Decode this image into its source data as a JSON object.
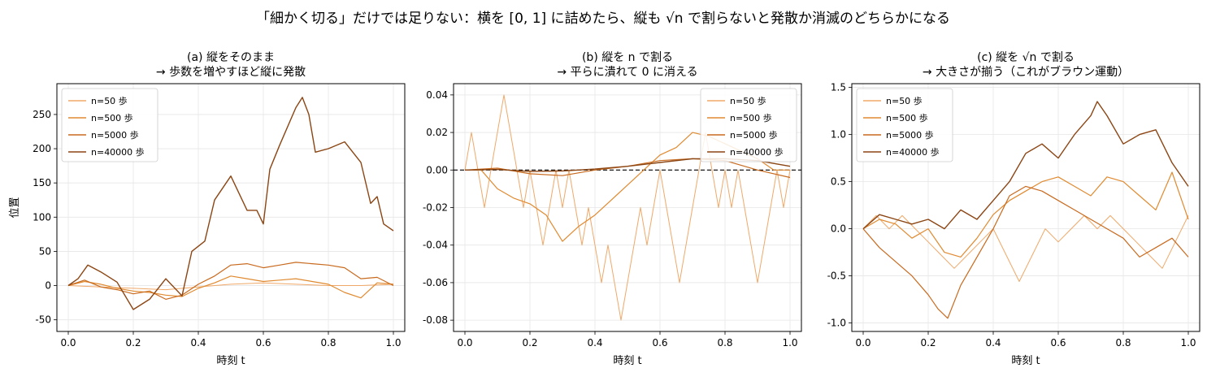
{
  "suptitle": "「細かく切る」だけでは足りない：横を [0, 1] に詰めたら、縦も √n で割らないと発散か消滅のどちらかになる",
  "colors": {
    "n50": "#f0a868",
    "n500": "#e08a30",
    "n5000": "#c86a1e",
    "n40000": "#8b4513",
    "zero_line": "#000000",
    "grid": "#e6e6e6"
  },
  "legend_labels": [
    "n=50 歩",
    "n=500 歩",
    "n=5000 歩",
    "n=40000 歩"
  ],
  "chart_data": [
    {
      "type": "line",
      "title_line1": "(a) 縦をそのまま",
      "title_line2": "→ 歩数を増やすほど縦に発散",
      "xlabel": "時刻 t",
      "ylabel": "位置",
      "xlim": [
        -0.035,
        1.035
      ],
      "ylim": [
        -67,
        295
      ],
      "xticks": [
        0.0,
        0.2,
        0.4,
        0.6,
        0.8,
        1.0
      ],
      "xtick_labels": [
        "0.0",
        "0.2",
        "0.4",
        "0.6",
        "0.8",
        "1.0"
      ],
      "yticks": [
        -50,
        0,
        50,
        100,
        150,
        200,
        250
      ],
      "ytick_labels": [
        "-50",
        "0",
        "50",
        "100",
        "150",
        "200",
        "250"
      ],
      "grid": true,
      "legend_position": "top-left",
      "series": [
        {
          "name": "n=50 歩",
          "x": [
            0.0,
            0.1,
            0.2,
            0.3,
            0.4,
            0.5,
            0.6,
            0.7,
            0.8,
            0.9,
            1.0
          ],
          "y": [
            0,
            -2,
            -4,
            -6,
            -2,
            2,
            4,
            2,
            0,
            0,
            2
          ]
        },
        {
          "name": "n=500 歩",
          "x": [
            0.0,
            0.05,
            0.1,
            0.15,
            0.2,
            0.25,
            0.3,
            0.35,
            0.4,
            0.45,
            0.5,
            0.55,
            0.6,
            0.65,
            0.7,
            0.75,
            0.8,
            0.85,
            0.9,
            0.95,
            1.0
          ],
          "y": [
            0,
            6,
            2,
            -4,
            -8,
            -10,
            -14,
            -16,
            -4,
            4,
            14,
            10,
            6,
            8,
            10,
            6,
            2,
            -10,
            -18,
            4,
            2
          ]
        },
        {
          "name": "n=5000 歩",
          "x": [
            0.0,
            0.05,
            0.1,
            0.15,
            0.2,
            0.25,
            0.3,
            0.35,
            0.4,
            0.45,
            0.5,
            0.55,
            0.6,
            0.65,
            0.7,
            0.75,
            0.8,
            0.85,
            0.9,
            0.95,
            1.0
          ],
          "y": [
            0,
            8,
            -2,
            -6,
            -12,
            -8,
            -20,
            -14,
            2,
            14,
            30,
            32,
            26,
            30,
            34,
            32,
            30,
            26,
            10,
            12,
            0
          ]
        },
        {
          "name": "n=40000 歩",
          "x": [
            0.0,
            0.03,
            0.06,
            0.1,
            0.15,
            0.2,
            0.25,
            0.3,
            0.35,
            0.38,
            0.42,
            0.45,
            0.5,
            0.55,
            0.58,
            0.6,
            0.62,
            0.65,
            0.7,
            0.72,
            0.74,
            0.76,
            0.8,
            0.85,
            0.9,
            0.93,
            0.95,
            0.97,
            1.0
          ],
          "y": [
            0,
            10,
            30,
            20,
            5,
            -35,
            -20,
            10,
            -15,
            50,
            65,
            125,
            160,
            110,
            110,
            90,
            170,
            205,
            260,
            275,
            250,
            195,
            200,
            210,
            180,
            120,
            130,
            90,
            80
          ]
        }
      ]
    },
    {
      "type": "line",
      "title_line1": "(b) 縦を n で割る",
      "title_line2": "→ 平らに潰れて 0 に消える",
      "xlabel": "時刻 t",
      "ylabel": "",
      "xlim": [
        -0.035,
        1.035
      ],
      "ylim": [
        -0.086,
        0.046
      ],
      "xticks": [
        0.0,
        0.2,
        0.4,
        0.6,
        0.8,
        1.0
      ],
      "xtick_labels": [
        "0.0",
        "0.2",
        "0.4",
        "0.6",
        "0.8",
        "1.0"
      ],
      "yticks": [
        -0.08,
        -0.06,
        -0.04,
        -0.02,
        0.0,
        0.02,
        0.04
      ],
      "ytick_labels": [
        "-0.08",
        "-0.06",
        "-0.04",
        "-0.02",
        "0.00",
        "0.02",
        "0.04"
      ],
      "grid": true,
      "legend_position": "top-right",
      "zero_line": true,
      "series": [
        {
          "name": "n=50 歩",
          "x": [
            0.0,
            0.02,
            0.04,
            0.06,
            0.08,
            0.1,
            0.12,
            0.14,
            0.16,
            0.18,
            0.2,
            0.22,
            0.24,
            0.26,
            0.28,
            0.3,
            0.32,
            0.34,
            0.36,
            0.38,
            0.4,
            0.42,
            0.44,
            0.46,
            0.48,
            0.5,
            0.52,
            0.54,
            0.56,
            0.58,
            0.6,
            0.62,
            0.64,
            0.66,
            0.68,
            0.7,
            0.72,
            0.74,
            0.76,
            0.78,
            0.8,
            0.82,
            0.84,
            0.86,
            0.88,
            0.9,
            0.92,
            0.94,
            0.96,
            0.98,
            1.0
          ],
          "y": [
            0.0,
            0.02,
            0.0,
            -0.02,
            0.0,
            0.02,
            0.04,
            0.02,
            0.0,
            -0.02,
            0.0,
            -0.02,
            -0.04,
            -0.02,
            0.0,
            -0.02,
            0.0,
            -0.02,
            -0.04,
            -0.02,
            -0.04,
            -0.06,
            -0.04,
            -0.06,
            -0.08,
            -0.06,
            -0.04,
            -0.02,
            -0.04,
            -0.02,
            0.0,
            -0.02,
            -0.04,
            -0.06,
            -0.04,
            -0.02,
            0.0,
            0.02,
            0.0,
            -0.02,
            0.0,
            -0.02,
            0.0,
            -0.02,
            -0.04,
            -0.06,
            -0.04,
            -0.02,
            0.0,
            -0.02,
            0.0
          ]
        },
        {
          "name": "n=500 歩",
          "x": [
            0.0,
            0.05,
            0.1,
            0.15,
            0.2,
            0.25,
            0.3,
            0.35,
            0.4,
            0.45,
            0.5,
            0.55,
            0.6,
            0.65,
            0.7,
            0.75,
            0.8,
            0.85,
            0.9,
            0.95,
            1.0
          ],
          "y": [
            0.0,
            0.0,
            -0.01,
            -0.015,
            -0.018,
            -0.024,
            -0.038,
            -0.03,
            -0.024,
            -0.016,
            -0.008,
            0.0,
            0.008,
            0.012,
            0.02,
            0.018,
            0.014,
            0.01,
            0.006,
            0.0,
            0.0
          ]
        },
        {
          "name": "n=5000 歩",
          "x": [
            0.0,
            0.1,
            0.2,
            0.3,
            0.4,
            0.5,
            0.6,
            0.7,
            0.8,
            0.9,
            1.0
          ],
          "y": [
            0.0,
            0.001,
            -0.002,
            -0.003,
            0.0,
            0.002,
            0.005,
            0.006,
            0.005,
            0.0,
            -0.004
          ]
        },
        {
          "name": "n=40000 歩",
          "x": [
            0.0,
            0.1,
            0.2,
            0.3,
            0.4,
            0.5,
            0.6,
            0.7,
            0.8,
            0.9,
            1.0
          ],
          "y": [
            0.0,
            0.0003,
            -0.0008,
            -0.0005,
            0.0005,
            0.002,
            0.004,
            0.006,
            0.006,
            0.005,
            0.002
          ]
        }
      ]
    },
    {
      "type": "line",
      "title_line1": "(c) 縦を √n で割る",
      "title_line2": "→ 大きさが揃う（これがブラウン運動）",
      "xlabel": "時刻 t",
      "ylabel": "",
      "xlim": [
        -0.035,
        1.035
      ],
      "ylim": [
        -1.09,
        1.54
      ],
      "xticks": [
        0.0,
        0.2,
        0.4,
        0.6,
        0.8,
        1.0
      ],
      "xtick_labels": [
        "0.0",
        "0.2",
        "0.4",
        "0.6",
        "0.8",
        "1.0"
      ],
      "yticks": [
        -1.0,
        -0.5,
        0.0,
        0.5,
        1.0,
        1.5
      ],
      "ytick_labels": [
        "-1.0",
        "-0.5",
        "0.0",
        "0.5",
        "1.0",
        "1.5"
      ],
      "grid": true,
      "legend_position": "top-left",
      "series": [
        {
          "name": "n=50 歩",
          "x": [
            0.0,
            0.04,
            0.08,
            0.12,
            0.16,
            0.2,
            0.24,
            0.28,
            0.32,
            0.36,
            0.4,
            0.44,
            0.48,
            0.52,
            0.56,
            0.6,
            0.64,
            0.68,
            0.72,
            0.76,
            0.8,
            0.84,
            0.88,
            0.92,
            0.96,
            1.0
          ],
          "y": [
            0.0,
            0.14,
            0.0,
            0.14,
            0.0,
            -0.14,
            -0.28,
            -0.42,
            -0.28,
            -0.14,
            0.0,
            -0.28,
            -0.56,
            -0.28,
            0.0,
            -0.14,
            0.0,
            0.14,
            0.0,
            0.14,
            0.0,
            -0.14,
            -0.28,
            -0.42,
            -0.14,
            0.14
          ]
        },
        {
          "name": "n=500 歩",
          "x": [
            0.0,
            0.05,
            0.1,
            0.15,
            0.2,
            0.25,
            0.3,
            0.35,
            0.4,
            0.45,
            0.5,
            0.55,
            0.6,
            0.65,
            0.7,
            0.75,
            0.8,
            0.85,
            0.9,
            0.95,
            1.0
          ],
          "y": [
            0.0,
            0.1,
            0.05,
            -0.1,
            0.0,
            -0.25,
            -0.3,
            -0.1,
            0.15,
            0.3,
            0.4,
            0.5,
            0.55,
            0.45,
            0.35,
            0.55,
            0.5,
            0.35,
            0.2,
            0.6,
            0.1
          ]
        },
        {
          "name": "n=5000 歩",
          "x": [
            0.0,
            0.05,
            0.1,
            0.15,
            0.2,
            0.23,
            0.26,
            0.3,
            0.35,
            0.4,
            0.45,
            0.5,
            0.55,
            0.6,
            0.65,
            0.7,
            0.75,
            0.8,
            0.85,
            0.9,
            0.95,
            1.0
          ],
          "y": [
            0.0,
            -0.2,
            -0.35,
            -0.5,
            -0.7,
            -0.85,
            -0.95,
            -0.6,
            -0.3,
            0.0,
            0.35,
            0.45,
            0.4,
            0.3,
            0.2,
            0.1,
            0.0,
            -0.1,
            -0.3,
            -0.2,
            -0.1,
            -0.3
          ]
        },
        {
          "name": "n=40000 歩",
          "x": [
            0.0,
            0.05,
            0.1,
            0.15,
            0.2,
            0.25,
            0.3,
            0.35,
            0.4,
            0.45,
            0.5,
            0.55,
            0.6,
            0.65,
            0.7,
            0.72,
            0.75,
            0.8,
            0.85,
            0.9,
            0.95,
            1.0
          ],
          "y": [
            0.0,
            0.15,
            0.1,
            0.05,
            0.1,
            0.0,
            0.2,
            0.1,
            0.3,
            0.5,
            0.8,
            0.9,
            0.75,
            1.0,
            1.2,
            1.35,
            1.2,
            0.9,
            1.0,
            1.05,
            0.7,
            0.45
          ]
        }
      ]
    }
  ]
}
